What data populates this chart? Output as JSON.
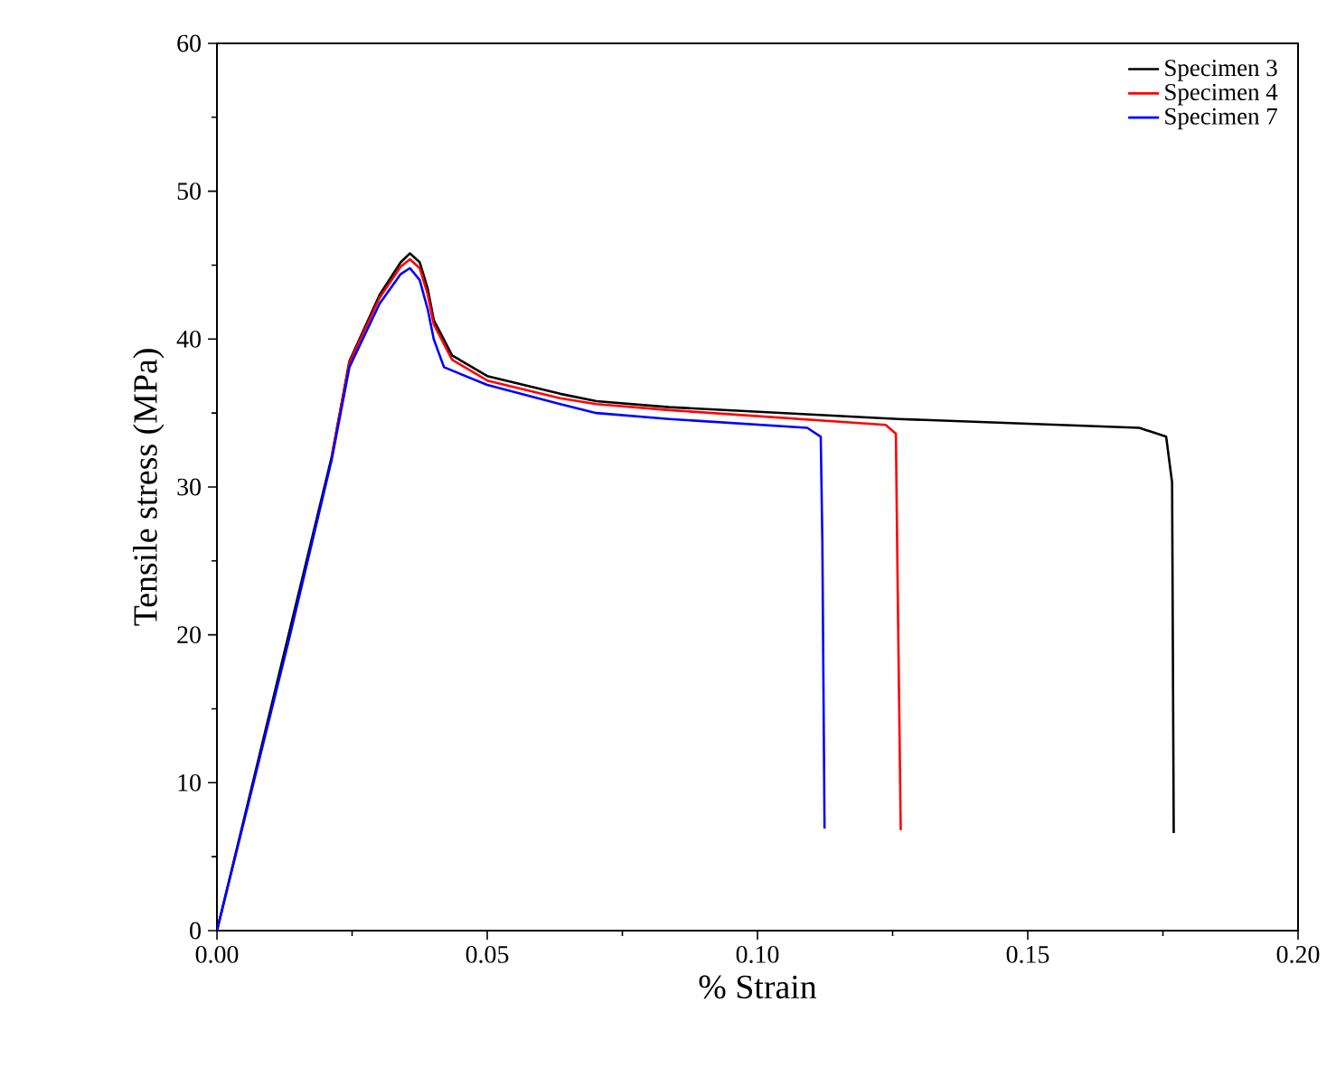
{
  "chart_data": {
    "type": "line",
    "xlabel": "% Strain",
    "ylabel": "Tensile stress (MPa)",
    "xlim": [
      0,
      0.2
    ],
    "ylim": [
      0,
      60
    ],
    "xticks": [
      {
        "value": 0,
        "label": "0.00"
      },
      {
        "value": 0.05,
        "label": "0.05"
      },
      {
        "value": 0.1,
        "label": "0.10"
      },
      {
        "value": 0.15,
        "label": "0.15"
      },
      {
        "value": 0.2,
        "label": "0.20"
      }
    ],
    "yticks": [
      0,
      10,
      20,
      30,
      40,
      50,
      60
    ],
    "legend": "top right",
    "grid": false,
    "marker": "none",
    "line_style": "solid",
    "series": [
      {
        "name": "Specimen 3",
        "color": "#000000",
        "x": [
          0,
          0.0212,
          0.0245,
          0.0301,
          0.034,
          0.0357,
          0.0375,
          0.039,
          0.0401,
          0.0435,
          0.05,
          0.0635,
          0.0702,
          0.0836,
          0.126,
          0.1706,
          0.1756,
          0.1767,
          0.177
        ],
        "values": [
          0,
          32.0,
          38.5,
          43.0,
          45.2,
          45.8,
          45.2,
          43.4,
          41.3,
          38.9,
          37.5,
          36.3,
          35.8,
          35.4,
          34.6,
          34.0,
          33.4,
          30.3,
          6.6
        ]
      },
      {
        "name": "Specimen 4",
        "color": "#ff0000",
        "x": [
          0.0212,
          0.0245,
          0.0301,
          0.034,
          0.0357,
          0.0375,
          0.039,
          0.0401,
          0.0435,
          0.05,
          0.0635,
          0.0702,
          0.0836,
          0.1237,
          0.1256,
          0.1259,
          0.1265
        ],
        "values": [
          32.0,
          38.4,
          42.8,
          44.9,
          45.4,
          44.8,
          43.0,
          41.0,
          38.6,
          37.2,
          36.0,
          35.6,
          35.2,
          34.2,
          33.6,
          24.2,
          6.8
        ]
      },
      {
        "name": "Specimen 7",
        "color": "#0000ff",
        "x": [
          0,
          0.0134,
          0.0212,
          0.0245,
          0.0301,
          0.034,
          0.0357,
          0.0375,
          0.039,
          0.0401,
          0.042,
          0.05,
          0.0635,
          0.0702,
          0.0836,
          0.1092,
          0.1117,
          0.112,
          0.1124
        ],
        "values": [
          0,
          19.8,
          31.8,
          38.1,
          42.4,
          44.4,
          44.8,
          44.0,
          42.0,
          40.0,
          38.1,
          36.9,
          35.6,
          35.0,
          34.6,
          34.0,
          33.4,
          26.3,
          6.9
        ]
      }
    ]
  }
}
